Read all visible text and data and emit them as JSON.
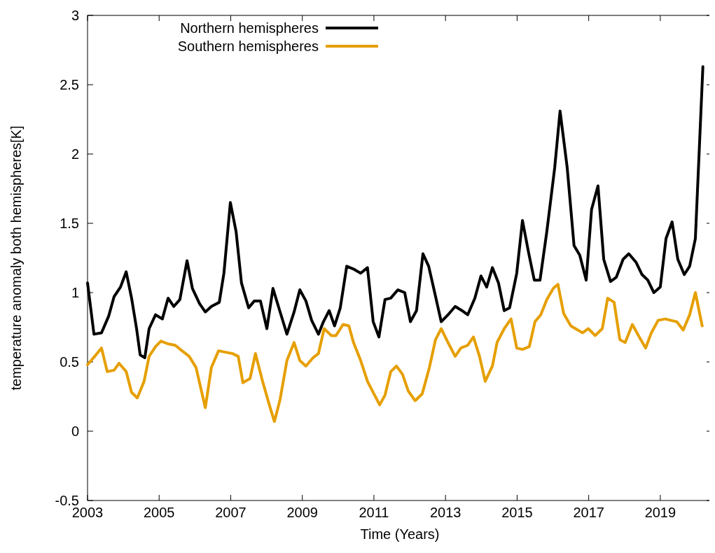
{
  "chart_data": {
    "type": "line",
    "xlabel": "Time (Years)",
    "ylabel": "temperature anomaly both hemispheres[K]",
    "xlim": [
      2003,
      2020.45
    ],
    "xticks": [
      2003,
      2005,
      2007,
      2009,
      2011,
      2013,
      2015,
      2017,
      2019
    ],
    "ylim": [
      -0.5,
      3
    ],
    "yticks": [
      -0.5,
      0,
      0.5,
      1,
      1.5,
      2,
      2.5,
      3
    ],
    "grid": false,
    "legend": "top left",
    "marker": "none",
    "line_style": "solid",
    "series": [
      {
        "name": "Northern hemispheres",
        "color": "#000000",
        "x": [
          2003.0,
          2003.18,
          2003.39,
          2003.59,
          2003.74,
          2003.92,
          2004.08,
          2004.23,
          2004.37,
          2004.47,
          2004.6,
          2004.72,
          2004.9,
          2005.09,
          2005.25,
          2005.41,
          2005.58,
          2005.78,
          2005.93,
          2006.13,
          2006.29,
          2006.46,
          2006.68,
          2006.81,
          2006.99,
          2007.15,
          2007.3,
          2007.5,
          2007.66,
          2007.83,
          2008.01,
          2008.18,
          2008.38,
          2008.57,
          2008.77,
          2008.93,
          2009.1,
          2009.26,
          2009.45,
          2009.59,
          2009.75,
          2009.9,
          2010.06,
          2010.24,
          2010.43,
          2010.63,
          2010.82,
          2010.98,
          2011.14,
          2011.31,
          2011.47,
          2011.67,
          2011.86,
          2012.02,
          2012.19,
          2012.37,
          2012.53,
          2012.68,
          2012.88,
          2013.07,
          2013.27,
          2013.46,
          2013.62,
          2013.82,
          2013.99,
          2014.15,
          2014.31,
          2014.48,
          2014.64,
          2014.79,
          2014.99,
          2015.15,
          2015.32,
          2015.48,
          2015.64,
          2015.83,
          2016.05,
          2016.2,
          2016.4,
          2016.59,
          2016.75,
          2016.93,
          2017.08,
          2017.26,
          2017.42,
          2017.61,
          2017.77,
          2017.96,
          2018.12,
          2018.32,
          2018.49,
          2018.65,
          2018.82,
          2019.0,
          2019.16,
          2019.33,
          2019.49,
          2019.67,
          2019.82,
          2019.98,
          2020.19
        ],
        "values": [
          1.07,
          0.7,
          0.71,
          0.83,
          0.97,
          1.04,
          1.15,
          0.96,
          0.74,
          0.55,
          0.53,
          0.74,
          0.84,
          0.81,
          0.96,
          0.9,
          0.95,
          1.23,
          1.03,
          0.92,
          0.86,
          0.9,
          0.93,
          1.14,
          1.65,
          1.44,
          1.07,
          0.89,
          0.94,
          0.94,
          0.74,
          1.03,
          0.86,
          0.7,
          0.86,
          1.02,
          0.94,
          0.8,
          0.7,
          0.79,
          0.87,
          0.76,
          0.89,
          1.19,
          1.17,
          1.14,
          1.18,
          0.79,
          0.68,
          0.95,
          0.96,
          1.02,
          1.0,
          0.79,
          0.87,
          1.28,
          1.19,
          1.02,
          0.79,
          0.84,
          0.9,
          0.87,
          0.84,
          0.96,
          1.12,
          1.04,
          1.18,
          1.07,
          0.87,
          0.89,
          1.14,
          1.52,
          1.29,
          1.09,
          1.09,
          1.44,
          1.9,
          2.31,
          1.9,
          1.34,
          1.27,
          1.09,
          1.6,
          1.77,
          1.24,
          1.08,
          1.11,
          1.24,
          1.28,
          1.22,
          1.13,
          1.09,
          1.0,
          1.04,
          1.39,
          1.51,
          1.24,
          1.13,
          1.19,
          1.39,
          2.63
        ]
      },
      {
        "name": "Southern hemispheres",
        "color": "#e69f00",
        "x": [
          2003.0,
          2003.2,
          2003.39,
          2003.55,
          2003.74,
          2003.88,
          2004.08,
          2004.23,
          2004.39,
          2004.58,
          2004.72,
          2004.9,
          2005.05,
          2005.25,
          2005.45,
          2005.64,
          2005.84,
          2006.03,
          2006.29,
          2006.46,
          2006.66,
          2006.85,
          2007.05,
          2007.21,
          2007.34,
          2007.54,
          2007.69,
          2007.89,
          2008.09,
          2008.22,
          2008.38,
          2008.57,
          2008.77,
          2008.93,
          2009.1,
          2009.3,
          2009.45,
          2009.61,
          2009.81,
          2009.94,
          2010.14,
          2010.3,
          2010.43,
          2010.63,
          2010.82,
          2010.98,
          2011.16,
          2011.31,
          2011.47,
          2011.63,
          2011.8,
          2011.96,
          2012.15,
          2012.35,
          2012.55,
          2012.72,
          2012.88,
          2013.07,
          2013.27,
          2013.43,
          2013.62,
          2013.78,
          2013.95,
          2014.11,
          2014.31,
          2014.44,
          2014.64,
          2014.83,
          2014.99,
          2015.15,
          2015.34,
          2015.5,
          2015.66,
          2015.83,
          2016.01,
          2016.14,
          2016.3,
          2016.5,
          2016.63,
          2016.83,
          2016.99,
          2017.18,
          2017.38,
          2017.53,
          2017.71,
          2017.87,
          2018.02,
          2018.22,
          2018.39,
          2018.59,
          2018.75,
          2018.94,
          2019.14,
          2019.29,
          2019.46,
          2019.64,
          2019.82,
          2019.98,
          2020.17
        ],
        "values": [
          0.48,
          0.54,
          0.6,
          0.43,
          0.44,
          0.49,
          0.43,
          0.28,
          0.24,
          0.36,
          0.54,
          0.61,
          0.65,
          0.63,
          0.62,
          0.58,
          0.54,
          0.46,
          0.17,
          0.46,
          0.58,
          0.57,
          0.56,
          0.54,
          0.35,
          0.38,
          0.56,
          0.36,
          0.18,
          0.07,
          0.23,
          0.51,
          0.64,
          0.51,
          0.47,
          0.53,
          0.56,
          0.74,
          0.69,
          0.69,
          0.77,
          0.76,
          0.64,
          0.51,
          0.36,
          0.28,
          0.19,
          0.26,
          0.43,
          0.47,
          0.41,
          0.29,
          0.22,
          0.27,
          0.46,
          0.66,
          0.74,
          0.64,
          0.54,
          0.6,
          0.62,
          0.68,
          0.54,
          0.36,
          0.47,
          0.64,
          0.74,
          0.81,
          0.6,
          0.59,
          0.61,
          0.79,
          0.84,
          0.95,
          1.03,
          1.06,
          0.85,
          0.76,
          0.74,
          0.71,
          0.74,
          0.69,
          0.74,
          0.96,
          0.93,
          0.66,
          0.64,
          0.77,
          0.69,
          0.6,
          0.71,
          0.8,
          0.81,
          0.8,
          0.79,
          0.73,
          0.84,
          1.0,
          0.76
        ]
      }
    ]
  }
}
